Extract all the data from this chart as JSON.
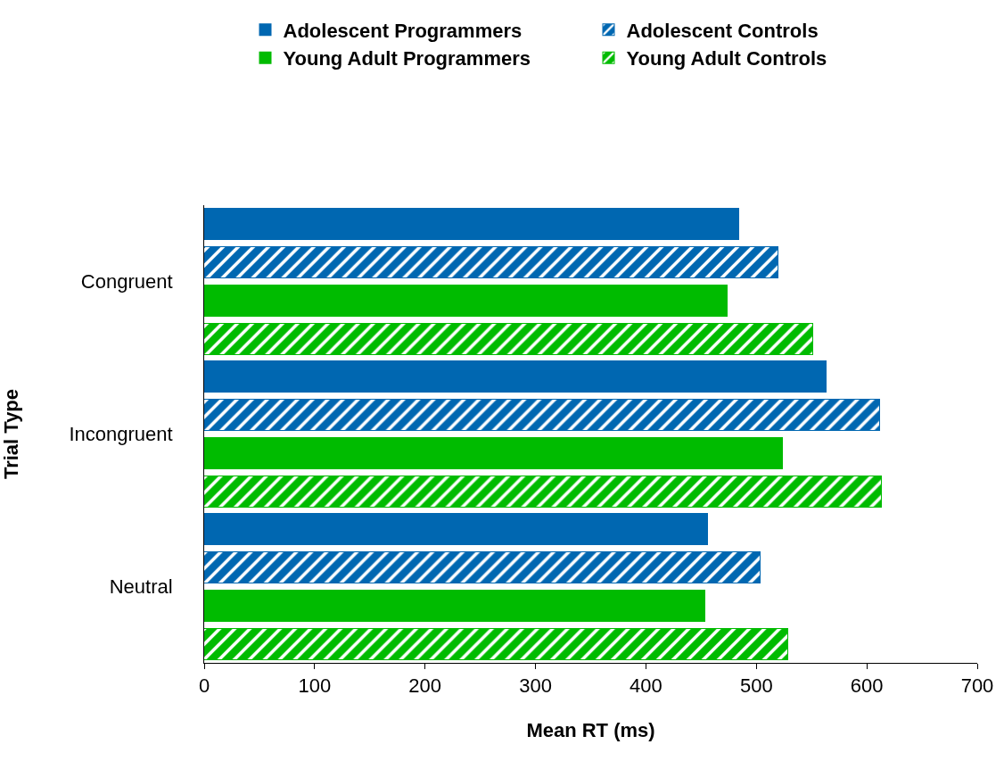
{
  "chart_data": {
    "type": "bar",
    "orientation": "horizontal",
    "xlabel": "Mean RT (ms)",
    "ylabel": "Trial Type",
    "categories": [
      "Congruent",
      "Incongruent",
      "Neutral"
    ],
    "series": [
      {
        "name": "Adolescent Programmers",
        "color": "#0067b1",
        "values": [
          484,
          563,
          455
        ]
      },
      {
        "name": "Adolescent Controls",
        "color": "#0067b1",
        "values": [
          519,
          611,
          503
        ]
      },
      {
        "name": "Young Adult Programmers",
        "color": "#00bb00",
        "values": [
          473,
          523,
          453
        ]
      },
      {
        "name": "Young Adult Controls",
        "color": "#00bb00",
        "values": [
          551,
          613,
          528
        ]
      }
    ],
    "xlim": [
      0,
      700
    ],
    "xticks": [
      0,
      100,
      200,
      300,
      400,
      500,
      600,
      700
    ],
    "legend": "top"
  }
}
